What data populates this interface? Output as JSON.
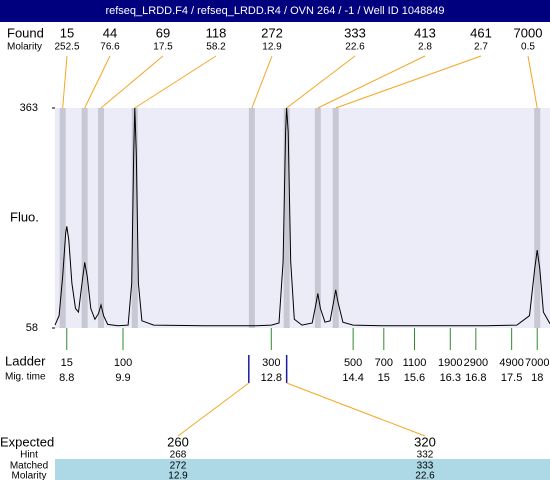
{
  "chart_data": {
    "type": "line",
    "title": "refseq_LRDD.F4 / refseq_LRDD.R4 / OVN 264 / -1 / Well ID 1048849",
    "y_label": "Fluo.",
    "xlim": [
      8.57,
      18.25
    ],
    "ylim": [
      58,
      363
    ],
    "yticks": [
      363,
      58
    ],
    "color": "#000000",
    "x": [
      8.57,
      8.65,
      8.72,
      8.78,
      8.8,
      8.84,
      8.9,
      8.97,
      9.03,
      9.08,
      9.15,
      9.2,
      9.27,
      9.35,
      9.42,
      9.47,
      9.52,
      9.6,
      9.8,
      10.0,
      10.07,
      10.11,
      10.13,
      10.16,
      10.2,
      10.27,
      10.5,
      11.5,
      12.5,
      12.8,
      12.95,
      13.03,
      13.08,
      13.1,
      13.13,
      13.18,
      13.25,
      13.4,
      13.6,
      13.67,
      13.71,
      13.76,
      13.85,
      13.95,
      14.02,
      14.06,
      14.1,
      14.2,
      14.4,
      15,
      16,
      17,
      17.6,
      17.85,
      17.95,
      18.0,
      18.05,
      18.12,
      18.25
    ],
    "values": [
      62,
      75,
      130,
      190,
      199,
      180,
      120,
      85,
      80,
      110,
      149,
      130,
      85,
      70,
      78,
      90,
      75,
      63,
      61,
      62,
      120,
      300,
      363,
      300,
      120,
      68,
      62,
      61,
      61,
      62,
      65,
      150,
      330,
      363,
      330,
      150,
      70,
      62,
      65,
      90,
      106,
      85,
      66,
      68,
      95,
      111,
      95,
      66,
      62,
      61,
      61,
      61,
      62,
      75,
      140,
      166,
      140,
      80,
      64
    ]
  },
  "found": {
    "label": "Found",
    "molarity_label": "Molarity",
    "sizes": [
      15,
      44,
      69,
      118,
      272,
      333,
      413,
      461,
      7000
    ],
    "molarity": [
      252.5,
      76.6,
      17.5,
      58.2,
      12.9,
      22.6,
      2.8,
      2.7,
      0.5
    ],
    "x": [
      8.72,
      9.15,
      9.47,
      10.13,
      12.42,
      13.1,
      13.71,
      14.06,
      18.0
    ]
  },
  "ladder": {
    "label": "Ladder",
    "time_label": "Mig. time",
    "sizes": [
      15,
      100,
      300,
      500,
      700,
      1100,
      1900,
      2900,
      4900,
      7000
    ],
    "x": [
      8.8,
      9.9,
      12.8,
      14.4,
      15,
      15.6,
      16.3,
      16.8,
      17.5,
      18
    ]
  },
  "expected": {
    "row_labels": [
      "Expected",
      "Hint",
      "Matched",
      "Molarity"
    ],
    "columns": [
      {
        "x": 12.36,
        "rows": [
          260,
          268,
          272,
          12.9
        ]
      },
      {
        "x": 13.1,
        "rows": [
          320,
          332,
          333,
          22.6
        ]
      }
    ]
  }
}
